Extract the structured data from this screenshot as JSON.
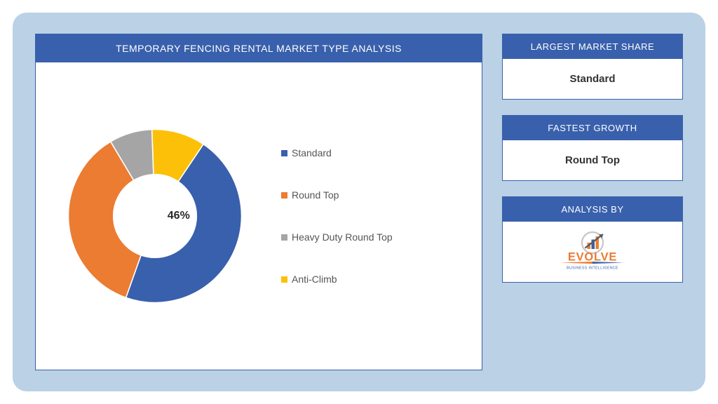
{
  "frame": {
    "bg": "#bad1e6"
  },
  "chart_panel": {
    "title": "TEMPORARY FENCING RENTAL MARKET TYPE ANALYSIS",
    "type": "donut",
    "center_label": "46%",
    "inner_radius_ratio": 0.48,
    "slices": [
      {
        "label": "Standard",
        "value": 46,
        "color": "#3960ac"
      },
      {
        "label": "Round Top",
        "value": 36,
        "color": "#eb7c31"
      },
      {
        "label": "Heavy Duty Round Top",
        "value": 8,
        "color": "#a5a5a5"
      },
      {
        "label": "Anti-Climb",
        "value": 10,
        "color": "#fdc008"
      }
    ],
    "start_angle_deg": -56,
    "legend_fontsize": 14,
    "title_fontsize": 14,
    "header_bg": "#3960ac",
    "header_fg": "#ffffff",
    "panel_bg": "#ffffff"
  },
  "cards": {
    "largest_share": {
      "title": "LARGEST MARKET SHARE",
      "value": "Standard"
    },
    "fastest_growth": {
      "title": "FASTEST GROWTH",
      "value": "Round Top"
    },
    "analysis_by": {
      "title": "ANALYSIS BY",
      "logo": {
        "main_text": "EVOLVE",
        "sub_text": "BUSINESS INTELLIGENCE",
        "main_color": "#eb7c31",
        "sub_color": "#3862a8",
        "bar_colors": [
          "#eb7c31",
          "#3862a8",
          "#eb7c31"
        ],
        "arrow_color": "#555b63",
        "ring_color": "#c7c7c7"
      }
    }
  }
}
